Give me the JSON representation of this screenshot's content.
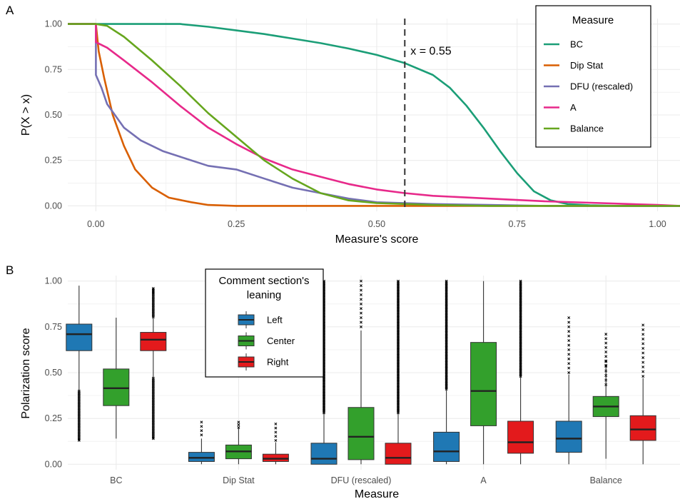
{
  "panels": {
    "a_tag": "A",
    "b_tag": "B"
  },
  "colors": {
    "grid": "#ebebeb",
    "BC": "#1b9e77",
    "Dip Stat": "#d95f02",
    "DFU (rescaled)": "#7570b3",
    "A": "#e7298a",
    "Balance": "#66a61e",
    "Left": "#1f78b4",
    "Center": "#33a02c",
    "Right": "#e31a1c"
  },
  "chart_data": [
    {
      "type": "line",
      "title": "",
      "xlabel": "Measure's score",
      "ylabel": "P(X > x)",
      "xlim": [
        -0.05,
        1.04
      ],
      "ylim": [
        -0.03,
        1.03
      ],
      "x_ticks": [
        0.0,
        0.25,
        0.5,
        0.75,
        1.0
      ],
      "x_tick_labels": [
        "0.00",
        "0.25",
        "0.50",
        "0.75",
        "1.00"
      ],
      "y_ticks": [
        0.0,
        0.25,
        0.5,
        0.75,
        1.0
      ],
      "y_tick_labels": [
        "0.00",
        "0.25",
        "0.50",
        "0.75",
        "1.00"
      ],
      "grid": true,
      "legend": {
        "title": "Measure",
        "placement": "top-right"
      },
      "vline": {
        "x": 0.55,
        "style": "dashed",
        "label": "x = 0.55"
      },
      "series": [
        {
          "name": "BC",
          "points": [
            [
              -0.05,
              1.0
            ],
            [
              0.15,
              1.0
            ],
            [
              0.2,
              0.985
            ],
            [
              0.25,
              0.965
            ],
            [
              0.3,
              0.945
            ],
            [
              0.35,
              0.92
            ],
            [
              0.4,
              0.895
            ],
            [
              0.45,
              0.865
            ],
            [
              0.5,
              0.83
            ],
            [
              0.55,
              0.785
            ],
            [
              0.6,
              0.72
            ],
            [
              0.63,
              0.65
            ],
            [
              0.66,
              0.55
            ],
            [
              0.69,
              0.43
            ],
            [
              0.72,
              0.3
            ],
            [
              0.75,
              0.18
            ],
            [
              0.78,
              0.08
            ],
            [
              0.81,
              0.03
            ],
            [
              0.84,
              0.01
            ],
            [
              0.88,
              0.003
            ],
            [
              0.93,
              0.0
            ],
            [
              1.04,
              0.0
            ]
          ]
        },
        {
          "name": "Dip Stat",
          "points": [
            [
              -0.05,
              1.0
            ],
            [
              0.0,
              1.0
            ],
            [
              0.005,
              0.85
            ],
            [
              0.015,
              0.7
            ],
            [
              0.03,
              0.5
            ],
            [
              0.05,
              0.33
            ],
            [
              0.07,
              0.2
            ],
            [
              0.1,
              0.1
            ],
            [
              0.13,
              0.045
            ],
            [
              0.17,
              0.02
            ],
            [
              0.2,
              0.005
            ],
            [
              0.25,
              0.0
            ],
            [
              1.04,
              0.0
            ]
          ]
        },
        {
          "name": "DFU (rescaled)",
          "points": [
            [
              -0.05,
              1.0
            ],
            [
              0.0,
              1.0
            ],
            [
              0.0,
              0.72
            ],
            [
              0.01,
              0.65
            ],
            [
              0.02,
              0.56
            ],
            [
              0.05,
              0.43
            ],
            [
              0.08,
              0.36
            ],
            [
              0.12,
              0.3
            ],
            [
              0.16,
              0.26
            ],
            [
              0.2,
              0.22
            ],
            [
              0.25,
              0.2
            ],
            [
              0.3,
              0.15
            ],
            [
              0.35,
              0.1
            ],
            [
              0.4,
              0.07
            ],
            [
              0.45,
              0.04
            ],
            [
              0.5,
              0.02
            ],
            [
              0.55,
              0.015
            ],
            [
              0.6,
              0.01
            ],
            [
              0.7,
              0.005
            ],
            [
              0.8,
              0.0
            ],
            [
              1.04,
              0.0
            ]
          ]
        },
        {
          "name": "A",
          "points": [
            [
              -0.05,
              1.0
            ],
            [
              0.0,
              1.0
            ],
            [
              0.0,
              0.9
            ],
            [
              0.02,
              0.87
            ],
            [
              0.05,
              0.8
            ],
            [
              0.1,
              0.68
            ],
            [
              0.15,
              0.55
            ],
            [
              0.2,
              0.43
            ],
            [
              0.25,
              0.34
            ],
            [
              0.3,
              0.26
            ],
            [
              0.35,
              0.2
            ],
            [
              0.4,
              0.16
            ],
            [
              0.45,
              0.12
            ],
            [
              0.5,
              0.09
            ],
            [
              0.55,
              0.07
            ],
            [
              0.6,
              0.055
            ],
            [
              0.7,
              0.04
            ],
            [
              0.8,
              0.025
            ],
            [
              0.9,
              0.015
            ],
            [
              1.0,
              0.005
            ],
            [
              1.04,
              0.0
            ]
          ]
        },
        {
          "name": "Balance",
          "points": [
            [
              -0.05,
              1.0
            ],
            [
              0.0,
              1.0
            ],
            [
              0.02,
              0.99
            ],
            [
              0.05,
              0.93
            ],
            [
              0.1,
              0.8
            ],
            [
              0.15,
              0.66
            ],
            [
              0.2,
              0.51
            ],
            [
              0.25,
              0.38
            ],
            [
              0.3,
              0.25
            ],
            [
              0.35,
              0.15
            ],
            [
              0.4,
              0.07
            ],
            [
              0.45,
              0.03
            ],
            [
              0.5,
              0.015
            ],
            [
              0.6,
              0.005
            ],
            [
              0.7,
              0.0
            ],
            [
              1.04,
              0.0
            ]
          ]
        }
      ]
    },
    {
      "type": "box",
      "title": "",
      "xlabel": "Measure",
      "ylabel": "Polarization score",
      "categories": [
        "BC",
        "Dip Stat",
        "DFU (rescaled)",
        "A",
        "Balance"
      ],
      "ylim": [
        -0.03,
        1.03
      ],
      "y_ticks": [
        0.0,
        0.25,
        0.5,
        0.75,
        1.0
      ],
      "y_tick_labels": [
        "0.00",
        "0.25",
        "0.50",
        "0.75",
        "1.00"
      ],
      "grid": true,
      "legend": {
        "title_line1": "Comment section's",
        "title_line2": "leaning",
        "placement": "top-center"
      },
      "series": [
        {
          "name": "Left",
          "boxes": [
            {
              "low": 0.14,
              "q1": 0.62,
              "median": 0.71,
              "q3": 0.765,
              "high": 0.975,
              "outliers": "low-dense",
              "out_from": 0.13,
              "out_to": 0.4
            },
            {
              "low": 0.0,
              "q1": 0.015,
              "median": 0.035,
              "q3": 0.065,
              "high": 0.14,
              "outliers": "high-sparse",
              "out_from": 0.16,
              "out_to": 0.23
            },
            {
              "low": 0.0,
              "q1": 0.0,
              "median": 0.03,
              "q3": 0.115,
              "high": 0.28,
              "outliers": "high-dense",
              "out_from": 0.28,
              "out_to": 1.0
            },
            {
              "low": 0.0,
              "q1": 0.015,
              "median": 0.07,
              "q3": 0.175,
              "high": 0.41,
              "outliers": "high-dense",
              "out_from": 0.41,
              "out_to": 1.0
            },
            {
              "low": 0.0,
              "q1": 0.065,
              "median": 0.14,
              "q3": 0.235,
              "high": 0.49,
              "outliers": "high-sparse",
              "out_from": 0.5,
              "out_to": 0.8
            }
          ]
        },
        {
          "name": "Center",
          "boxes": [
            {
              "low": 0.14,
              "q1": 0.32,
              "median": 0.415,
              "q3": 0.52,
              "high": 0.8,
              "outliers": "none"
            },
            {
              "low": 0.0,
              "q1": 0.03,
              "median": 0.07,
              "q3": 0.105,
              "high": 0.2,
              "outliers": "high-sparse",
              "out_from": 0.2,
              "out_to": 0.23
            },
            {
              "low": 0.0,
              "q1": 0.025,
              "median": 0.15,
              "q3": 0.31,
              "high": 0.73,
              "outliers": "high-sparse",
              "out_from": 0.75,
              "out_to": 1.0
            },
            {
              "low": 0.0,
              "q1": 0.21,
              "median": 0.4,
              "q3": 0.665,
              "high": 1.0,
              "outliers": "none"
            },
            {
              "low": 0.03,
              "q1": 0.26,
              "median": 0.315,
              "q3": 0.37,
              "high": 0.53,
              "outliers": "both-sparse",
              "out_from": 0.54,
              "out_to": 0.71
            }
          ]
        },
        {
          "name": "Right",
          "boxes": [
            {
              "low": 0.15,
              "q1": 0.62,
              "median": 0.68,
              "q3": 0.72,
              "high": 0.93,
              "outliers": "both-dense",
              "out_from": 0.14,
              "out_to": 0.47
            },
            {
              "low": 0.0,
              "q1": 0.015,
              "median": 0.03,
              "q3": 0.055,
              "high": 0.12,
              "outliers": "high-sparse",
              "out_from": 0.13,
              "out_to": 0.22
            },
            {
              "low": 0.0,
              "q1": 0.0,
              "median": 0.035,
              "q3": 0.115,
              "high": 0.28,
              "outliers": "high-dense",
              "out_from": 0.28,
              "out_to": 1.0
            },
            {
              "low": 0.0,
              "q1": 0.06,
              "median": 0.12,
              "q3": 0.235,
              "high": 0.48,
              "outliers": "high-dense",
              "out_from": 0.48,
              "out_to": 1.0
            },
            {
              "low": 0.0,
              "q1": 0.13,
              "median": 0.19,
              "q3": 0.265,
              "high": 0.47,
              "outliers": "high-sparse",
              "out_from": 0.48,
              "out_to": 0.76
            }
          ]
        }
      ]
    }
  ]
}
